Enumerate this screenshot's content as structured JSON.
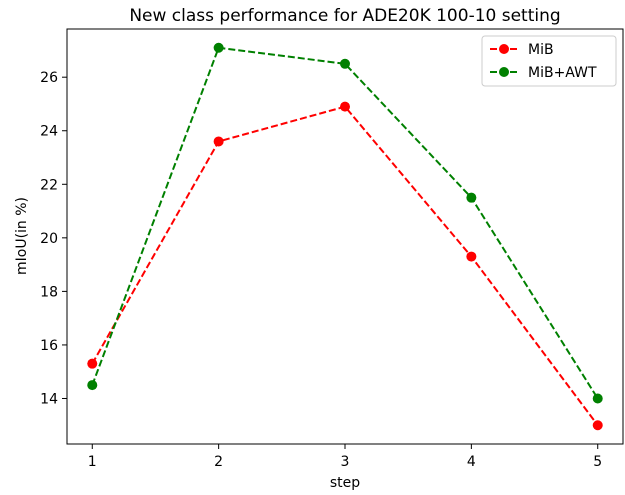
{
  "chart_data": {
    "type": "line",
    "title": "New class performance for ADE20K 100-10 setting",
    "xlabel": "step",
    "ylabel": "mIoU(in %)",
    "x": [
      1,
      2,
      3,
      4,
      5
    ],
    "x_ticks": [
      "1",
      "2",
      "3",
      "4",
      "5"
    ],
    "y_ticks": [
      "14",
      "16",
      "18",
      "20",
      "22",
      "24",
      "26"
    ],
    "xlim": [
      0.8,
      5.2
    ],
    "ylim": [
      12.3,
      27.8
    ],
    "grid": false,
    "legend_position": "top-right",
    "series": [
      {
        "name": "MiB",
        "color": "#ff0000",
        "linestyle": "dashed",
        "marker": "circle",
        "values": [
          15.3,
          23.6,
          24.9,
          19.3,
          13.0
        ]
      },
      {
        "name": "MiB+AWT",
        "color": "#008000",
        "linestyle": "dashed",
        "marker": "circle",
        "values": [
          14.5,
          27.1,
          26.5,
          21.5,
          14.0
        ]
      }
    ]
  }
}
